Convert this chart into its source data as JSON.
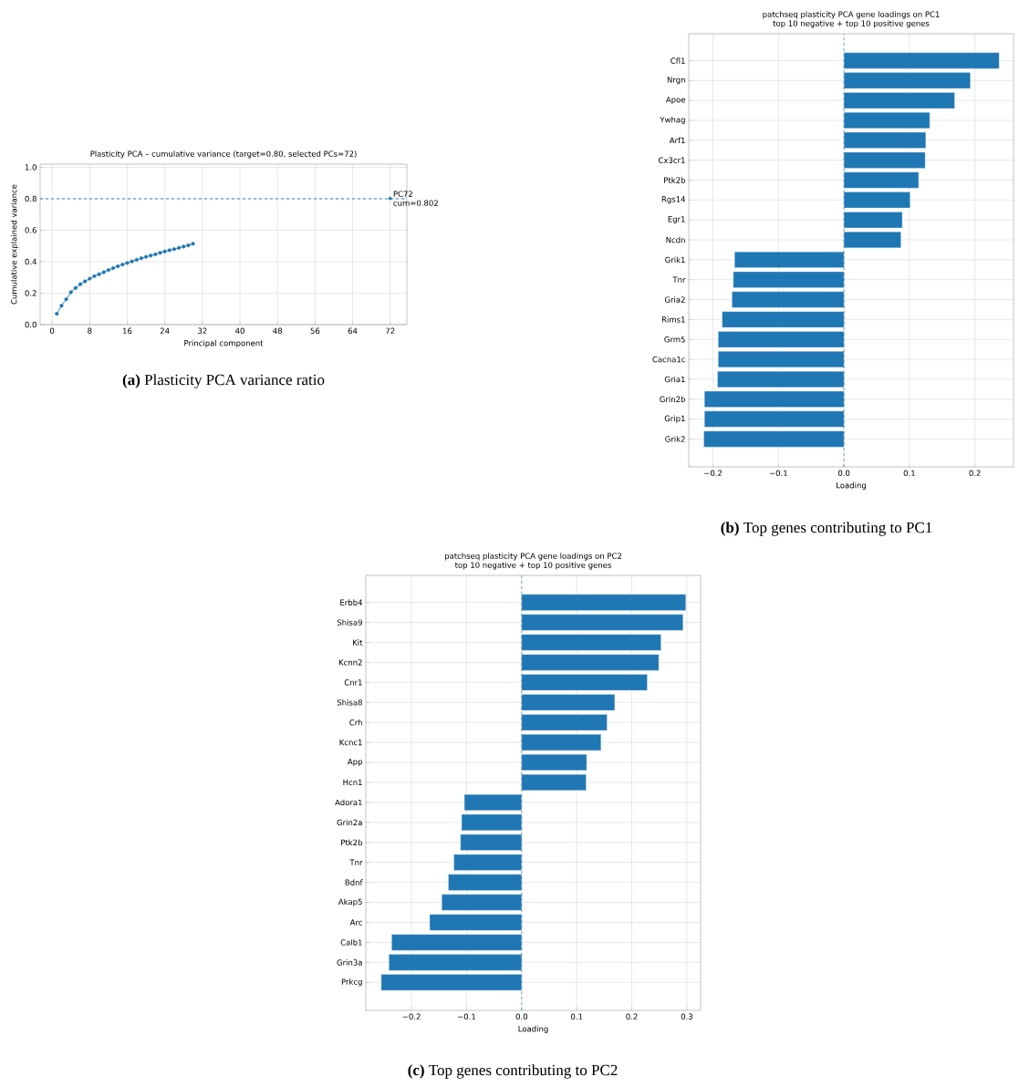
{
  "chart_data": [
    {
      "type": "line",
      "title": "Plasticity PCA – cumulative variance (target=0.80, selected PCs=72)",
      "xlabel": "Principal component",
      "ylabel": "Cumulative explained variance",
      "series": [
        {
          "color": "#1f77b4",
          "x": [
            1,
            2,
            3,
            4,
            5,
            6,
            7,
            8,
            9,
            10,
            11,
            12,
            13,
            14,
            15,
            16,
            17,
            18,
            19,
            20,
            21,
            22,
            23,
            24,
            25,
            26,
            27,
            28,
            29,
            30
          ],
          "values": [
            0.069,
            0.12,
            0.161,
            0.206,
            0.233,
            0.257,
            0.275,
            0.292,
            0.308,
            0.32,
            0.333,
            0.347,
            0.359,
            0.371,
            0.382,
            0.392,
            0.402,
            0.412,
            0.422,
            0.431,
            0.439,
            0.447,
            0.457,
            0.465,
            0.473,
            0.48,
            0.488,
            0.496,
            0.504,
            0.514
          ]
        },
        {
          "type": "scatter",
          "color": "#1f77b4",
          "x": [
            72
          ],
          "values": [
            0.802
          ]
        }
      ],
      "xlim": [
        -2.55,
        75.55
      ],
      "ylim": [
        0,
        1.02
      ],
      "xticks": [
        0,
        8,
        16,
        24,
        32,
        40,
        48,
        56,
        64,
        72
      ],
      "yticks": [
        {
          "value": 0,
          "label": "0.0"
        },
        0.2,
        0.4,
        0.6,
        0.8,
        {
          "value": 1,
          "label": "1.0"
        }
      ],
      "ref_lines": [
        {
          "axis": "y",
          "value": 0.8,
          "color": "#1f77b4",
          "line_style": "dashed"
        }
      ],
      "grid": true,
      "marker": "circle",
      "line_style": "solid",
      "annotations": [
        "**(a)** Plasticity PCA variance ratio",
        {
          "text": "PC72 cum=0.802",
          "x": 72,
          "y": 0.802
        }
      ]
    },
    {
      "type": "bar",
      "orientation": "horizontal",
      "title": "patchseq plasticity PCA gene loadings on PC1",
      "subtitle": "top 10 negative + top 10 positive genes",
      "xlabel": "Loading",
      "categories": [
        "Cfl1",
        "Nrgn",
        "Apoe",
        "Ywhag",
        "Arf1",
        "Cx3cr1",
        "Ptk2b",
        "Rgs14",
        "Egr1",
        "Ncdn",
        "Grik1",
        "Tnr",
        "Gria2",
        "Rims1",
        "Grm5",
        "Cacna1c",
        "Gria1",
        "Grin2b",
        "Grip1",
        "Grik2"
      ],
      "values": [
        0.237,
        0.193,
        0.169,
        0.131,
        0.125,
        0.124,
        0.114,
        0.101,
        0.089,
        0.087,
        -0.167,
        -0.169,
        -0.171,
        -0.186,
        -0.192,
        -0.192,
        -0.193,
        -0.213,
        -0.213,
        -0.214
      ],
      "color": "#1f77b4",
      "xlim": [
        -0.237,
        0.259
      ],
      "xticks": [
        {
          "value": -0.2,
          "label": "−0.2"
        },
        {
          "value": -0.1,
          "label": "−0.1"
        },
        {
          "value": 0,
          "label": "0.0"
        },
        0.1,
        0.2
      ],
      "ref_lines": [
        {
          "axis": "x",
          "value": 0,
          "color": "#1f77b4",
          "line_style": "dashed"
        }
      ],
      "grid": true,
      "annotations": [
        "**(b)** Top genes contributing to PC1"
      ]
    },
    {
      "type": "bar",
      "orientation": "horizontal",
      "title": "patchseq plasticity PCA gene loadings on PC2",
      "subtitle": "top 10 negative + top 10 positive genes",
      "xlabel": "Loading",
      "categories": [
        "Erbb4",
        "Shisa9",
        "Kit",
        "Kcnn2",
        "Cnr1",
        "Shisa8",
        "Crh",
        "Kcnc1",
        "App",
        "Hcn1",
        "Adora1",
        "Grin2a",
        "Ptk2b",
        "Tnr",
        "Bdnf",
        "Akap5",
        "Arc",
        "Calb1",
        "Grin3a",
        "Prkcg"
      ],
      "values": [
        0.298,
        0.293,
        0.253,
        0.249,
        0.228,
        0.169,
        0.155,
        0.144,
        0.118,
        0.117,
        -0.104,
        -0.109,
        -0.111,
        -0.123,
        -0.133,
        -0.145,
        -0.167,
        -0.236,
        -0.241,
        -0.255
      ],
      "color": "#1f77b4",
      "xlim": [
        -0.283,
        0.325
      ],
      "xticks": [
        {
          "value": -0.2,
          "label": "−0.2"
        },
        {
          "value": -0.1,
          "label": "−0.1"
        },
        {
          "value": 0,
          "label": "0.0"
        },
        0.1,
        0.2,
        0.3
      ],
      "ref_lines": [
        {
          "axis": "x",
          "value": 0,
          "color": "#1f77b4",
          "line_style": "dashed"
        }
      ],
      "grid": true,
      "annotations": [
        "**(c)** Top genes contributing to PC2"
      ]
    }
  ]
}
